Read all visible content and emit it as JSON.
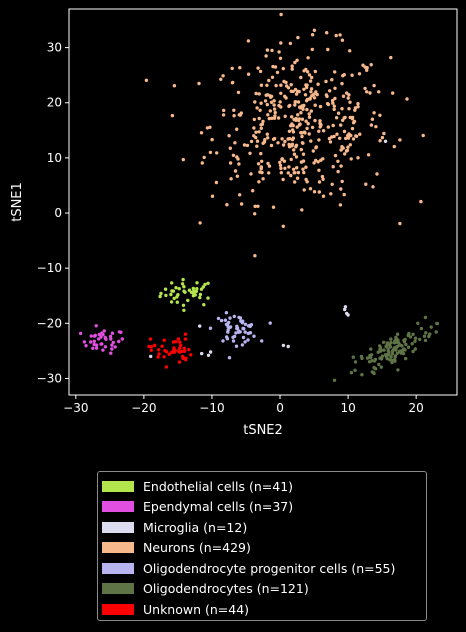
{
  "chart_data": {
    "type": "scatter",
    "xlabel": "tSNE2",
    "ylabel": "tSNE1",
    "xlim": [
      -31,
      26
    ],
    "ylim": [
      -33,
      37
    ],
    "xticks": [
      -30,
      -20,
      -10,
      0,
      10,
      20
    ],
    "yticks": [
      -30,
      -20,
      -10,
      0,
      10,
      20,
      30
    ],
    "tick_labels_x": [
      "−30",
      "−20",
      "−10",
      "0",
      "10",
      "20"
    ],
    "tick_labels_y": [
      "−30",
      "−20",
      "−10",
      "0",
      "10",
      "20",
      "30"
    ],
    "grid": false,
    "legend_position": "below",
    "series": [
      {
        "name": "Endothelial cells (n=41)",
        "color": "#b3e64d",
        "n": 41,
        "cluster_center": [
          -13.5,
          -14.5
        ],
        "cluster_spread": [
          2.0,
          1.2
        ]
      },
      {
        "name": "Ependymal cells (n=37)",
        "color": "#e04fdf",
        "n": 37,
        "cluster_center": [
          -26,
          -23.2
        ],
        "cluster_spread": [
          1.6,
          1.1
        ]
      },
      {
        "name": "Microglia (n=12)",
        "color": "#dcdcf0",
        "n": 12,
        "points": [
          [
            -11.8,
            -20.5
          ],
          [
            -11.5,
            -25.5
          ],
          [
            -10.5,
            -25.8
          ],
          [
            -10.2,
            -25.2
          ],
          [
            0.5,
            -24.0
          ],
          [
            1.2,
            -24.2
          ],
          [
            9.5,
            -17.5
          ],
          [
            9.8,
            -18.2
          ],
          [
            10.0,
            -18.5
          ],
          [
            9.6,
            -17.0
          ],
          [
            15.5,
            13.0
          ],
          [
            -19.0,
            -26.0
          ]
        ]
      },
      {
        "name": "Neurons (n=429)",
        "color": "#f7b98c",
        "n": 429,
        "cluster_center": [
          3.0,
          16.0
        ],
        "cluster_spread": [
          6.5,
          7.0
        ]
      },
      {
        "name": "Oligodendrocyte progenitor cells (n=55)",
        "color": "#b8b4f0",
        "n": 55,
        "cluster_center": [
          -6.5,
          -21.0
        ],
        "cluster_spread": [
          1.6,
          1.3
        ]
      },
      {
        "name": "Oligodendrocytes (n=121)",
        "color": "#5f7446",
        "n": 121,
        "cluster_center": [
          16.5,
          -25.0
        ],
        "cluster_spread": [
          3.2,
          2.0
        ]
      },
      {
        "name": "Unknown (n=44)",
        "color": "#ff0000",
        "n": 44,
        "cluster_center": [
          -16.0,
          -24.8
        ],
        "cluster_spread": [
          1.5,
          1.4
        ]
      }
    ]
  }
}
